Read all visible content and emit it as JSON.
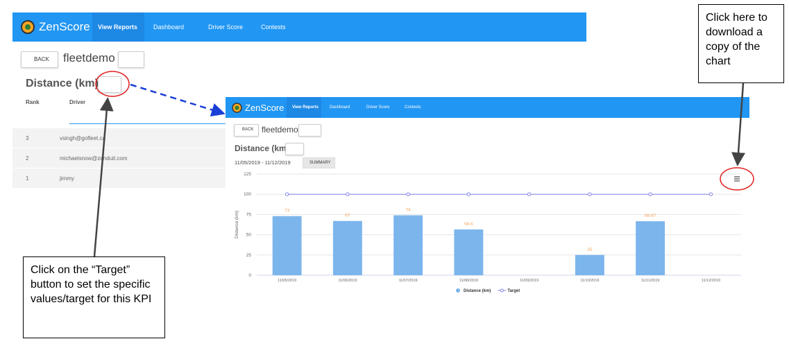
{
  "app": {
    "logo": "ZenScore",
    "nav": [
      "View Reports",
      "Dashboard",
      "Driver Score",
      "Contests"
    ],
    "back": "BACK",
    "group": "fleetdemo",
    "report_title": "Distance (km)",
    "table": {
      "headers": [
        "Rank",
        "Driver"
      ],
      "rows": [
        [
          "3",
          "vsingh@gofleet.ca"
        ],
        [
          "2",
          "michaelsnow@zenduit.com"
        ],
        [
          "1",
          "jimmy"
        ]
      ]
    },
    "date_range": "11/05/2019 - 11/12/2019",
    "summary": "SUMMARY"
  },
  "callouts": {
    "target": "Click on the “Target” button to set the specific values/target for this KPI",
    "download": "Click here to download a copy of the chart"
  },
  "chart_data": {
    "type": "bar",
    "ylabel": "Distance (km)",
    "categories": [
      "11/05/2019",
      "11/06/2019",
      "11/07/2019",
      "11/08/2019",
      "11/09/2019",
      "11/10/2019",
      "11/11/2019",
      "11/12/2019"
    ],
    "series": [
      {
        "name": "Distance (km)",
        "color": "#7cb5ec",
        "values": [
          73,
          67,
          74,
          56.5,
          null,
          25,
          66.67,
          null
        ]
      },
      {
        "name": "Target",
        "color": "#8085e9",
        "values": [
          100,
          100,
          100,
          100,
          100,
          100,
          100,
          100
        ]
      }
    ],
    "ylim": [
      0,
      125
    ],
    "yticks": [
      0,
      25,
      50,
      75,
      100,
      125
    ],
    "grid": true,
    "legend": "bottom"
  }
}
